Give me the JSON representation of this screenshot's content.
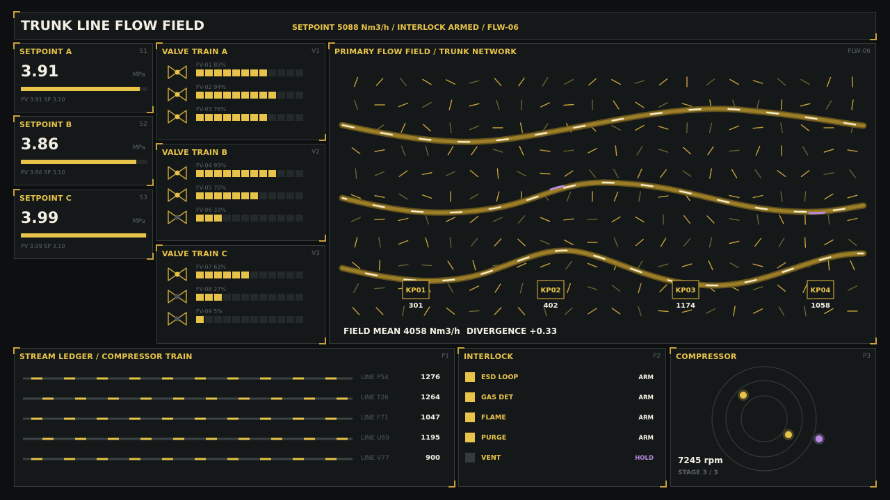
{
  "header": {
    "title": "TRUNK LINE FLOW FIELD",
    "status": "SETPOINT 5088 Nm3/h / INTERLOCK ARMED / FLW-06"
  },
  "setpoints": [
    {
      "title": "SETPOINT A",
      "tag": "S1",
      "value": "3.91",
      "unit": "MPa",
      "sub": "PV 3.91  SP 3.10",
      "fill": 0.94
    },
    {
      "title": "SETPOINT B",
      "tag": "S2",
      "value": "3.86",
      "unit": "MPa",
      "sub": "PV 3.86  SP 3.10",
      "fill": 0.91
    },
    {
      "title": "SETPOINT C",
      "tag": "S3",
      "value": "3.99",
      "unit": "MPa",
      "sub": "PV 3.99  SP 3.10",
      "fill": 0.99
    }
  ],
  "valve_trains": [
    {
      "title": "VALVE TRAIN A",
      "tag": "V1",
      "valves": [
        {
          "label": "FV-01 83%",
          "percent": 83,
          "active": true
        },
        {
          "label": "FV-02 94%",
          "percent": 94,
          "active": true
        },
        {
          "label": "FV-03 76%",
          "percent": 76,
          "active": true
        }
      ]
    },
    {
      "title": "VALVE TRAIN B",
      "tag": "V2",
      "valves": [
        {
          "label": "FV-04 93%",
          "percent": 93,
          "active": true
        },
        {
          "label": "FV-05 70%",
          "percent": 70,
          "active": true
        },
        {
          "label": "FV-06 33%",
          "percent": 33,
          "active": false
        }
      ]
    },
    {
      "title": "VALVE TRAIN C",
      "tag": "V3",
      "valves": [
        {
          "label": "FV-07 63%",
          "percent": 63,
          "active": true
        },
        {
          "label": "FV-08 27%",
          "percent": 27,
          "active": false
        },
        {
          "label": "FV-09 5%",
          "percent": 5,
          "active": false
        }
      ]
    }
  ],
  "flow_field": {
    "title": "PRIMARY FLOW FIELD / TRUNK NETWORK",
    "tag": "FLW-06",
    "footer_mean": "FIELD MEAN 4058 Nm3/h",
    "footer_div": "DIVERGENCE +0.33",
    "kps": [
      {
        "name": "KP01",
        "value": "301"
      },
      {
        "name": "KP02",
        "value": "402"
      },
      {
        "name": "KP03",
        "value": "1174"
      },
      {
        "name": "KP04",
        "value": "1058"
      }
    ]
  },
  "ledger": {
    "title": "STREAM LEDGER / COMPRESSOR TRAIN",
    "tag": "P1",
    "rows": [
      {
        "name": "LINE P54",
        "value": "1276"
      },
      {
        "name": "LINE T26",
        "value": "1264"
      },
      {
        "name": "LINE F71",
        "value": "1047"
      },
      {
        "name": "LINE U69",
        "value": "1195"
      },
      {
        "name": "LINE V77",
        "value": "900"
      }
    ]
  },
  "interlock": {
    "title": "INTERLOCK",
    "tag": "P2",
    "rows": [
      {
        "label": "ESD LOOP",
        "state": "ARM",
        "armed": true
      },
      {
        "label": "GAS DET",
        "state": "ARM",
        "armed": true
      },
      {
        "label": "FLAME",
        "state": "ARM",
        "armed": true
      },
      {
        "label": "PURGE",
        "state": "ARM",
        "armed": true
      },
      {
        "label": "VENT",
        "state": "HOLD",
        "armed": false
      }
    ]
  },
  "compressor": {
    "title": "COMPRESSOR",
    "tag": "P3",
    "speed": "7245 rpm",
    "stage": "STAGE 3 / 3"
  },
  "colors": {
    "accent": "#e8c34a",
    "hold": "#b98ae0",
    "bg": "#0d0f10",
    "panel": "#141819",
    "border": "#34393a",
    "text": "#f3efe4",
    "muted": "#5b6364"
  }
}
